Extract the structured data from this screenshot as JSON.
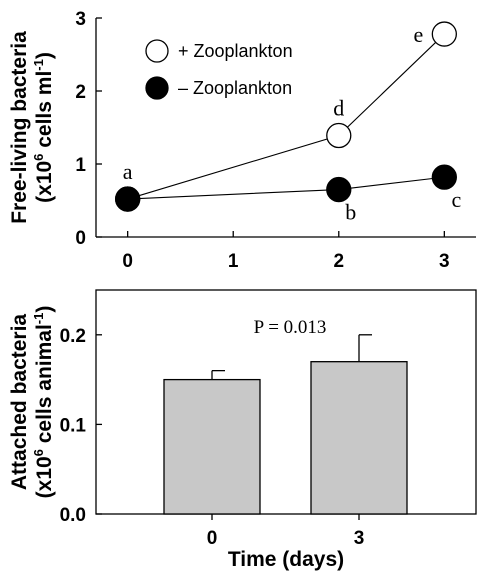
{
  "chart_data": [
    {
      "type": "line",
      "ylabel_line1": "Free-living bacteria",
      "ylabel_line2_prefix": "(x10",
      "ylabel_line2_sup": "6",
      "ylabel_line2_mid": " cells ml",
      "ylabel_line2_sup2": "-1",
      "ylabel_line2_suffix": ")",
      "xlim": [
        -0.3,
        3.3
      ],
      "ylim": [
        0,
        3
      ],
      "xticks": [
        0,
        1,
        2,
        3
      ],
      "yticks": [
        0,
        1,
        2,
        3
      ],
      "legend_position": "top-left",
      "series": [
        {
          "name": "+ Zooplankton",
          "marker": "open-circle",
          "x": [
            0,
            2,
            3
          ],
          "y": [
            0.52,
            1.39,
            2.78
          ],
          "point_labels": [
            "a",
            "d",
            "e"
          ],
          "label_placement": [
            "above",
            "above",
            "left-above"
          ]
        },
        {
          "name": "– Zooplankton",
          "marker": "filled-circle",
          "x": [
            0,
            2,
            3
          ],
          "y": [
            0.52,
            0.65,
            0.82
          ],
          "point_labels": [
            "",
            "b",
            "c"
          ],
          "label_placement": [
            "",
            "below",
            "below"
          ]
        }
      ]
    },
    {
      "type": "bar",
      "ylabel_line1": "Attached bacteria",
      "ylabel_line2_prefix": "(x10",
      "ylabel_line2_sup": "6",
      "ylabel_line2_mid": " cells animal",
      "ylabel_line2_sup2": "-1",
      "ylabel_line2_suffix": ")",
      "xlabel": "Time (days)",
      "categories": [
        "0",
        "3"
      ],
      "values": [
        0.15,
        0.17
      ],
      "errors": [
        0.01,
        0.03
      ],
      "bar_color": "#c8c8c8",
      "ylim": [
        0,
        0.25
      ],
      "yticks": [
        "0.0",
        "0.1",
        "0.2"
      ],
      "annotation": "P = 0.013"
    }
  ]
}
